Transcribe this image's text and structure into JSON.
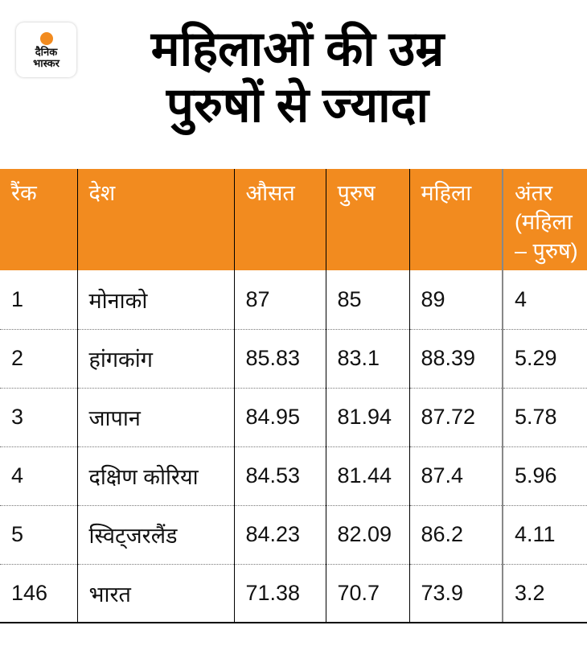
{
  "logo": {
    "line1": "दैनिक",
    "line2": "भास्कर"
  },
  "title": {
    "line1": "महिलाओं की उम्र",
    "line2": "पुरुषों से ज्यादा"
  },
  "table": {
    "headers": [
      "रैंक",
      "देश",
      "औसत",
      "पुरुष",
      "महिला",
      "अंतर (महिला – पुरुष)"
    ],
    "rows": [
      [
        "1",
        "मोनाको",
        "87",
        "85",
        "89",
        "4"
      ],
      [
        "2",
        "हांगकांग",
        "85.83",
        "83.1",
        "88.39",
        "5.29"
      ],
      [
        "3",
        "जापान",
        "84.95",
        "81.94",
        "87.72",
        "5.78"
      ],
      [
        "4",
        "दक्षिण कोरिया",
        "84.53",
        "81.44",
        "87.4",
        "5.96"
      ],
      [
        "5",
        "स्विट्जरलैंड",
        "84.23",
        "82.09",
        "86.2",
        "4.11"
      ],
      [
        "146",
        "भारत",
        "71.38",
        "70.7",
        "73.9",
        "3.2"
      ]
    ]
  },
  "colors": {
    "accent": "#f28b1f"
  }
}
